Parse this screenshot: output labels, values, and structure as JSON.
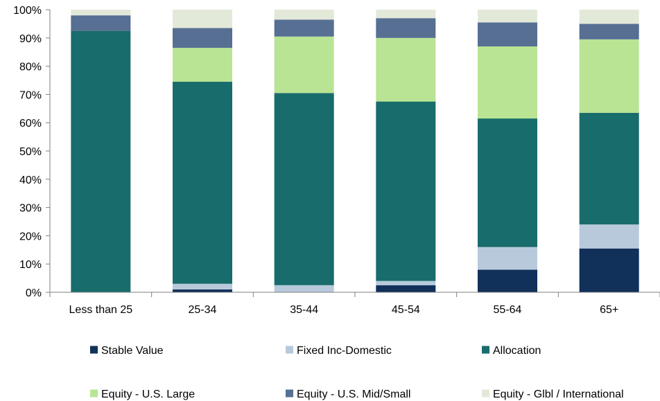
{
  "chart_data": {
    "type": "bar",
    "stacked": true,
    "categories": [
      "Less than 25",
      "25-34",
      "35-44",
      "45-54",
      "55-64",
      "65+"
    ],
    "series": [
      {
        "name": "Stable Value",
        "color": "#11305a",
        "values": [
          0,
          1,
          0,
          2.5,
          8,
          15.5
        ]
      },
      {
        "name": "Fixed Inc-Domestic",
        "color": "#b8c9dc",
        "values": [
          0,
          2,
          2.5,
          1.5,
          8,
          8.5
        ]
      },
      {
        "name": "Allocation",
        "color": "#186c6b",
        "values": [
          92.5,
          71.5,
          68,
          63.5,
          45.5,
          39.5
        ]
      },
      {
        "name": "Equity - U.S. Large",
        "color": "#b9e494",
        "values": [
          0,
          12,
          20,
          22.5,
          25.5,
          26
        ]
      },
      {
        "name": "Equity - U.S. Mid/Small",
        "color": "#566f93",
        "values": [
          5.5,
          7,
          6,
          7,
          8.5,
          5.5
        ]
      },
      {
        "name": "Equity - Glbl / International",
        "color": "#e3e9d8",
        "values": [
          2,
          6.5,
          3.5,
          3,
          4.5,
          5
        ]
      }
    ],
    "yticks": [
      "0%",
      "10%",
      "20%",
      "30%",
      "40%",
      "50%",
      "60%",
      "70%",
      "80%",
      "90%",
      "100%"
    ],
    "ylim": [
      0,
      100
    ],
    "grid": false,
    "legend_position": "bottom",
    "title": "",
    "xlabel": "",
    "ylabel": ""
  }
}
